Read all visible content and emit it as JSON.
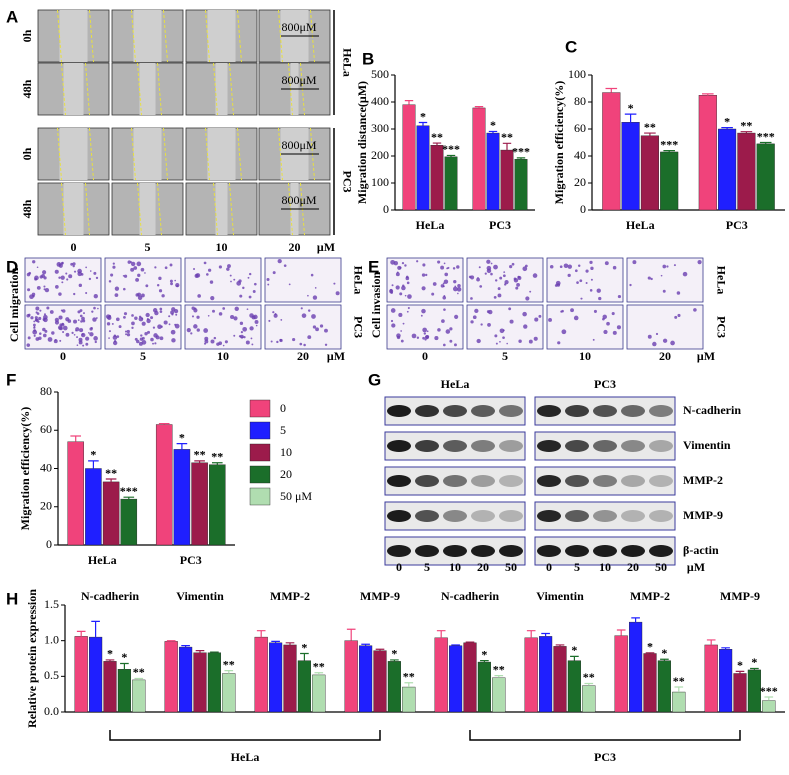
{
  "panel_labels": [
    "A",
    "B",
    "C",
    "D",
    "E",
    "F",
    "G",
    "H"
  ],
  "panel_a": {
    "rows": [
      "0h",
      "48h",
      "0h",
      "48h"
    ],
    "cell_lines": [
      "HeLa",
      "PC3"
    ],
    "scale_bar": "800μM",
    "doses": [
      "0",
      "5",
      "10",
      "20"
    ],
    "unit": "μM"
  },
  "panel_d": {
    "side_label": "Cell migration",
    "cell_lines": [
      "HeLa",
      "PC3"
    ],
    "doses": [
      "0",
      "5",
      "10",
      "20"
    ],
    "unit": "μM"
  },
  "panel_e": {
    "side_label": "Cell invasion",
    "cell_lines": [
      "HeLa",
      "PC3"
    ],
    "doses": [
      "0",
      "5",
      "10",
      "20"
    ],
    "unit": "μM"
  },
  "panel_g": {
    "cell_lines": [
      "HeLa",
      "PC3"
    ],
    "proteins": [
      "N-cadherin",
      "Vimentin",
      "MMP-2",
      "MMP-9",
      "β-actin"
    ],
    "doses": [
      "0",
      "5",
      "10",
      "20",
      "50"
    ],
    "unit": "μM"
  },
  "chart_data": [
    {
      "type": "bar",
      "y_label": "Migration distance(μM)",
      "categories": [
        "HeLa",
        "PC3"
      ],
      "ylim": [
        0,
        500
      ],
      "yticks": [
        0,
        100,
        200,
        300,
        400,
        500
      ],
      "series": [
        {
          "color": "#f0437b",
          "values": [
            390,
            378
          ],
          "errors": [
            15,
            5
          ]
        },
        {
          "color": "#1f1fff",
          "values": [
            312,
            285
          ],
          "errors": [
            12,
            6
          ],
          "significance": [
            "*",
            "*"
          ]
        },
        {
          "color": "#9c1b4b",
          "values": [
            240,
            222
          ],
          "errors": [
            8,
            25
          ],
          "significance": [
            "**",
            "**"
          ]
        },
        {
          "color": "#1b6e2a",
          "values": [
            197,
            188
          ],
          "errors": [
            5,
            5
          ],
          "significance": [
            "***",
            "***"
          ]
        }
      ]
    },
    {
      "type": "bar",
      "y_label": "Migration efficiency(%)",
      "categories": [
        "HeLa",
        "PC3"
      ],
      "ylim": [
        0,
        100
      ],
      "yticks": [
        0,
        20,
        40,
        60,
        80,
        100
      ],
      "series": [
        {
          "color": "#f0437b",
          "values": [
            87,
            85
          ],
          "errors": [
            3,
            1
          ]
        },
        {
          "color": "#1f1fff",
          "values": [
            65,
            60
          ],
          "errors": [
            6,
            1
          ],
          "significance": [
            "*",
            "*"
          ]
        },
        {
          "color": "#9c1b4b",
          "values": [
            55,
            57
          ],
          "errors": [
            2,
            1
          ],
          "significance": [
            "**",
            "**"
          ]
        },
        {
          "color": "#1b6e2a",
          "values": [
            43,
            49
          ],
          "errors": [
            1,
            1
          ],
          "significance": [
            "***",
            "***"
          ]
        }
      ]
    },
    {
      "type": "bar",
      "y_label": "Migration efficiency(%)",
      "categories": [
        "HeLa",
        "PC3"
      ],
      "ylim": [
        0,
        80
      ],
      "yticks": [
        0,
        20,
        40,
        60,
        80
      ],
      "series": [
        {
          "color": "#f0437b",
          "values": [
            54,
            63
          ],
          "errors": [
            3,
            0.5
          ]
        },
        {
          "color": "#1f1fff",
          "values": [
            40,
            50
          ],
          "errors": [
            4,
            3
          ],
          "significance": [
            "*",
            "*"
          ]
        },
        {
          "color": "#9c1b4b",
          "values": [
            33,
            43
          ],
          "errors": [
            1.5,
            1
          ],
          "significance": [
            "**",
            "**"
          ]
        },
        {
          "color": "#1b6e2a",
          "values": [
            24,
            42
          ],
          "errors": [
            1,
            1
          ],
          "significance": [
            "***",
            "**"
          ]
        }
      ]
    },
    {
      "type": "bar",
      "y_label": "Relative protein expression",
      "categories": [
        "N-cadherin",
        "Vimentin",
        "MMP-2",
        "MMP-9",
        "N-cadherin",
        "Vimentin",
        "MMP-2",
        "MMP-9"
      ],
      "groups": [
        "HeLa",
        "PC3"
      ],
      "ylim": [
        0,
        1.5
      ],
      "yticks": [
        {
          "value": 0,
          "label": "0.0"
        },
        0.5,
        {
          "value": 1,
          "label": "1.0"
        },
        1.5
      ],
      "series": [
        {
          "name": "0",
          "color": "#f0437b",
          "values": [
            1.06,
            0.99,
            1.05,
            1.0,
            1.04,
            1.04,
            1.07,
            0.94
          ],
          "errors": [
            0.07,
            0.01,
            0.09,
            0.16,
            0.1,
            0.1,
            0.08,
            0.07
          ]
        },
        {
          "name": "5",
          "color": "#1f1fff",
          "values": [
            1.05,
            0.91,
            0.97,
            0.93,
            0.93,
            1.06,
            1.26,
            0.88
          ],
          "errors": [
            0.22,
            0.02,
            0.02,
            0.02,
            0.01,
            0.04,
            0.06,
            0.02
          ]
        },
        {
          "name": "10",
          "color": "#9c1b4b",
          "values": [
            0.71,
            0.83,
            0.94,
            0.86,
            0.97,
            0.92,
            0.82,
            0.54
          ],
          "errors": [
            0.02,
            0.03,
            0.03,
            0.02,
            0.01,
            0.02,
            0.01,
            0.03
          ],
          "significance": [
            "*",
            null,
            null,
            null,
            null,
            null,
            "*",
            "*"
          ]
        },
        {
          "name": "20",
          "color": "#1b6e2a",
          "values": [
            0.6,
            0.83,
            0.72,
            0.71,
            0.7,
            0.72,
            0.72,
            0.59
          ],
          "errors": [
            0.08,
            0.01,
            0.1,
            0.02,
            0.02,
            0.06,
            0.02,
            0.02
          ],
          "significance": [
            "*",
            null,
            "*",
            "*",
            "*",
            "*",
            "*",
            "*"
          ]
        },
        {
          "name": "50 μM",
          "color": "#b0ddb0",
          "values": [
            0.45,
            0.54,
            0.52,
            0.35,
            0.48,
            0.37,
            0.28,
            0.16
          ],
          "errors": [
            0.02,
            0.04,
            0.03,
            0.06,
            0.03,
            0.03,
            0.07,
            0.05
          ],
          "significance": [
            "**",
            "**",
            "**",
            "**",
            "**",
            "**",
            "**",
            "***"
          ]
        }
      ]
    }
  ]
}
